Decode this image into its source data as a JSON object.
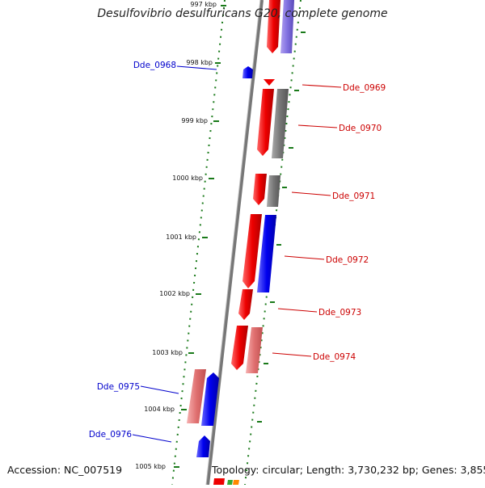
{
  "title": "Desulfovibrio desulfuricans G20, complete genome",
  "footer": {
    "accession": "Accession: NC_007519",
    "summary": "Topology: circular; Length: 3,730,232 bp; Genes: 3,855"
  },
  "colors": {
    "minus_strand_label": "#0000cc",
    "plus_strand_label": "#cc0000",
    "tick": "#1a7a1a",
    "backbone": "#888888"
  },
  "scale_ticks": [
    {
      "label": "997 kbp"
    },
    {
      "label": "998 kbp"
    },
    {
      "label": "999 kbp"
    },
    {
      "label": "1000 kbp"
    },
    {
      "label": "1001 kbp"
    },
    {
      "label": "1002 kbp"
    },
    {
      "label": "1003 kbp"
    },
    {
      "label": "1004 kbp"
    },
    {
      "label": "1005 kbp"
    }
  ],
  "gene_labels": [
    {
      "name": "Dde_0968",
      "strand": "minus"
    },
    {
      "name": "Dde_0969",
      "strand": "plus"
    },
    {
      "name": "Dde_0970",
      "strand": "plus"
    },
    {
      "name": "Dde_0971",
      "strand": "plus"
    },
    {
      "name": "Dde_0972",
      "strand": "plus"
    },
    {
      "name": "Dde_0973",
      "strand": "plus"
    },
    {
      "name": "Dde_0974",
      "strand": "plus"
    },
    {
      "name": "Dde_0975",
      "strand": "minus"
    },
    {
      "name": "Dde_0976",
      "strand": "minus"
    }
  ]
}
